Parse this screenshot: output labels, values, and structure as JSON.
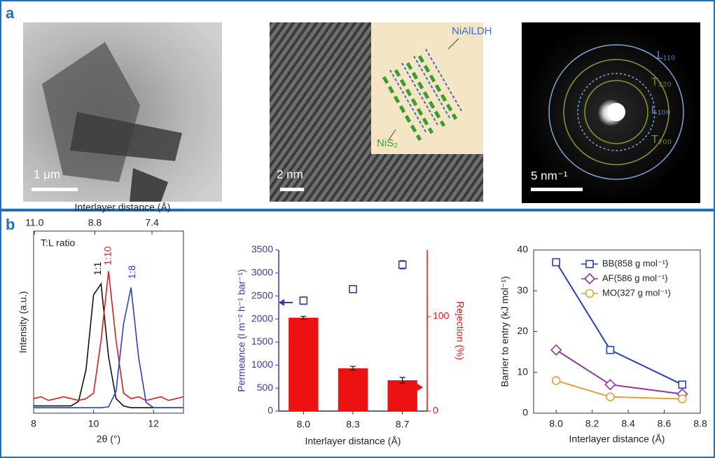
{
  "panel_a": {
    "label": "a",
    "images": [
      {
        "scale": "1 μm"
      },
      {
        "scale": "2 nm",
        "inset_labels": [
          "NiAlLDH",
          "NiS₂"
        ]
      },
      {
        "scale": "5 nm⁻¹",
        "ring_labels": [
          "L₁₁₀",
          "T₂₂₀",
          "L₁₀₀",
          "T₂₀₀"
        ]
      }
    ]
  },
  "panel_b_label": "b",
  "chart_data": [
    {
      "type": "line",
      "x_label": "2θ (°)",
      "x2_label": "Interlayer distance (Å)",
      "y_label": "Intensity (a.u.)",
      "annotation": "T:L ratio",
      "x": [
        8,
        8.25,
        8.5,
        8.75,
        9,
        9.25,
        9.5,
        9.75,
        10,
        10.25,
        10.5,
        10.75,
        11,
        11.25,
        11.5,
        11.75,
        12,
        12.25,
        12.5,
        12.75,
        13
      ],
      "xlim": [
        8,
        13
      ],
      "xticks": [
        8,
        10,
        12
      ],
      "x2ticks": [
        {
          "value": 11,
          "label": "11.0"
        },
        8.8,
        7.4
      ],
      "ylim": [
        0,
        100
      ],
      "series": [
        {
          "name": "1:1",
          "color": "#111111",
          "values": [
            4,
            4,
            4,
            4,
            4,
            4,
            6.5,
            24,
            65,
            71,
            31,
            8,
            4,
            3,
            3,
            3,
            3,
            3,
            3,
            3,
            3
          ]
        },
        {
          "name": "1:10",
          "color": "#d42020",
          "values": [
            8,
            9,
            7,
            8,
            9,
            8,
            7,
            8,
            11,
            40,
            78,
            40,
            11,
            8,
            9,
            7,
            8,
            9,
            7,
            8,
            9
          ]
        },
        {
          "name": "1:8",
          "color": "#2b3fc4",
          "values": [
            3,
            3,
            3,
            3,
            3,
            3,
            3,
            3,
            3,
            3,
            3.5,
            12,
            49,
            69,
            31,
            6,
            3,
            3,
            3,
            3,
            3
          ]
        }
      ]
    },
    {
      "type": "bar",
      "x_label": "Interlayer distance (Å)",
      "y_label": "Permeance (l m⁻² h⁻¹ bar⁻¹)",
      "y2_label": "Rejection (%)",
      "categories": [
        "8.0",
        "8.3",
        "8.7"
      ],
      "ylim": [
        0,
        3500
      ],
      "yticks": [
        0,
        500,
        1000,
        1500,
        2000,
        2500,
        3000,
        3500
      ],
      "y2lim": [
        0,
        170.4
      ],
      "y2ticks": [
        0,
        100
      ],
      "series": [
        {
          "color": "#3a3aa8",
          "marker": "square",
          "values": [
            2400,
            2650,
            3180
          ],
          "errors": [
            80,
            70,
            90
          ]
        },
        {
          "color": "#ee1111",
          "axis": "y2",
          "values": [
            98.8,
            45.3,
            32.6
          ],
          "errors": [
            1.5,
            2,
            3
          ]
        }
      ]
    },
    {
      "type": "line",
      "x_label": "Interlayer distance (Å)",
      "y_label": "Barrier to entry (kJ mol⁻¹)",
      "x": [
        8.0,
        8.3,
        8.7
      ],
      "xlim": [
        7.875,
        8.8
      ],
      "xticks": [
        {
          "value": 8,
          "label": "8.0"
        },
        8.2,
        8.4,
        8.6,
        8.8
      ],
      "ylim": [
        0,
        40
      ],
      "yticks": [
        0,
        10,
        20,
        30,
        40
      ],
      "legend": "upper right",
      "series": [
        {
          "name": "BB(858 g mol⁻¹)",
          "color": "#2a3fc0",
          "marker": "square",
          "values": [
            37,
            15.5,
            7
          ]
        },
        {
          "name": "AF(586 g mol⁻¹)",
          "color": "#8a3aa0",
          "marker": "diamond",
          "values": [
            15.5,
            7,
            4.7
          ]
        },
        {
          "name": "MO(327 g mol⁻¹)",
          "color": "#e0a040",
          "marker": "circle",
          "values": [
            8,
            4,
            3.5
          ]
        }
      ]
    }
  ]
}
